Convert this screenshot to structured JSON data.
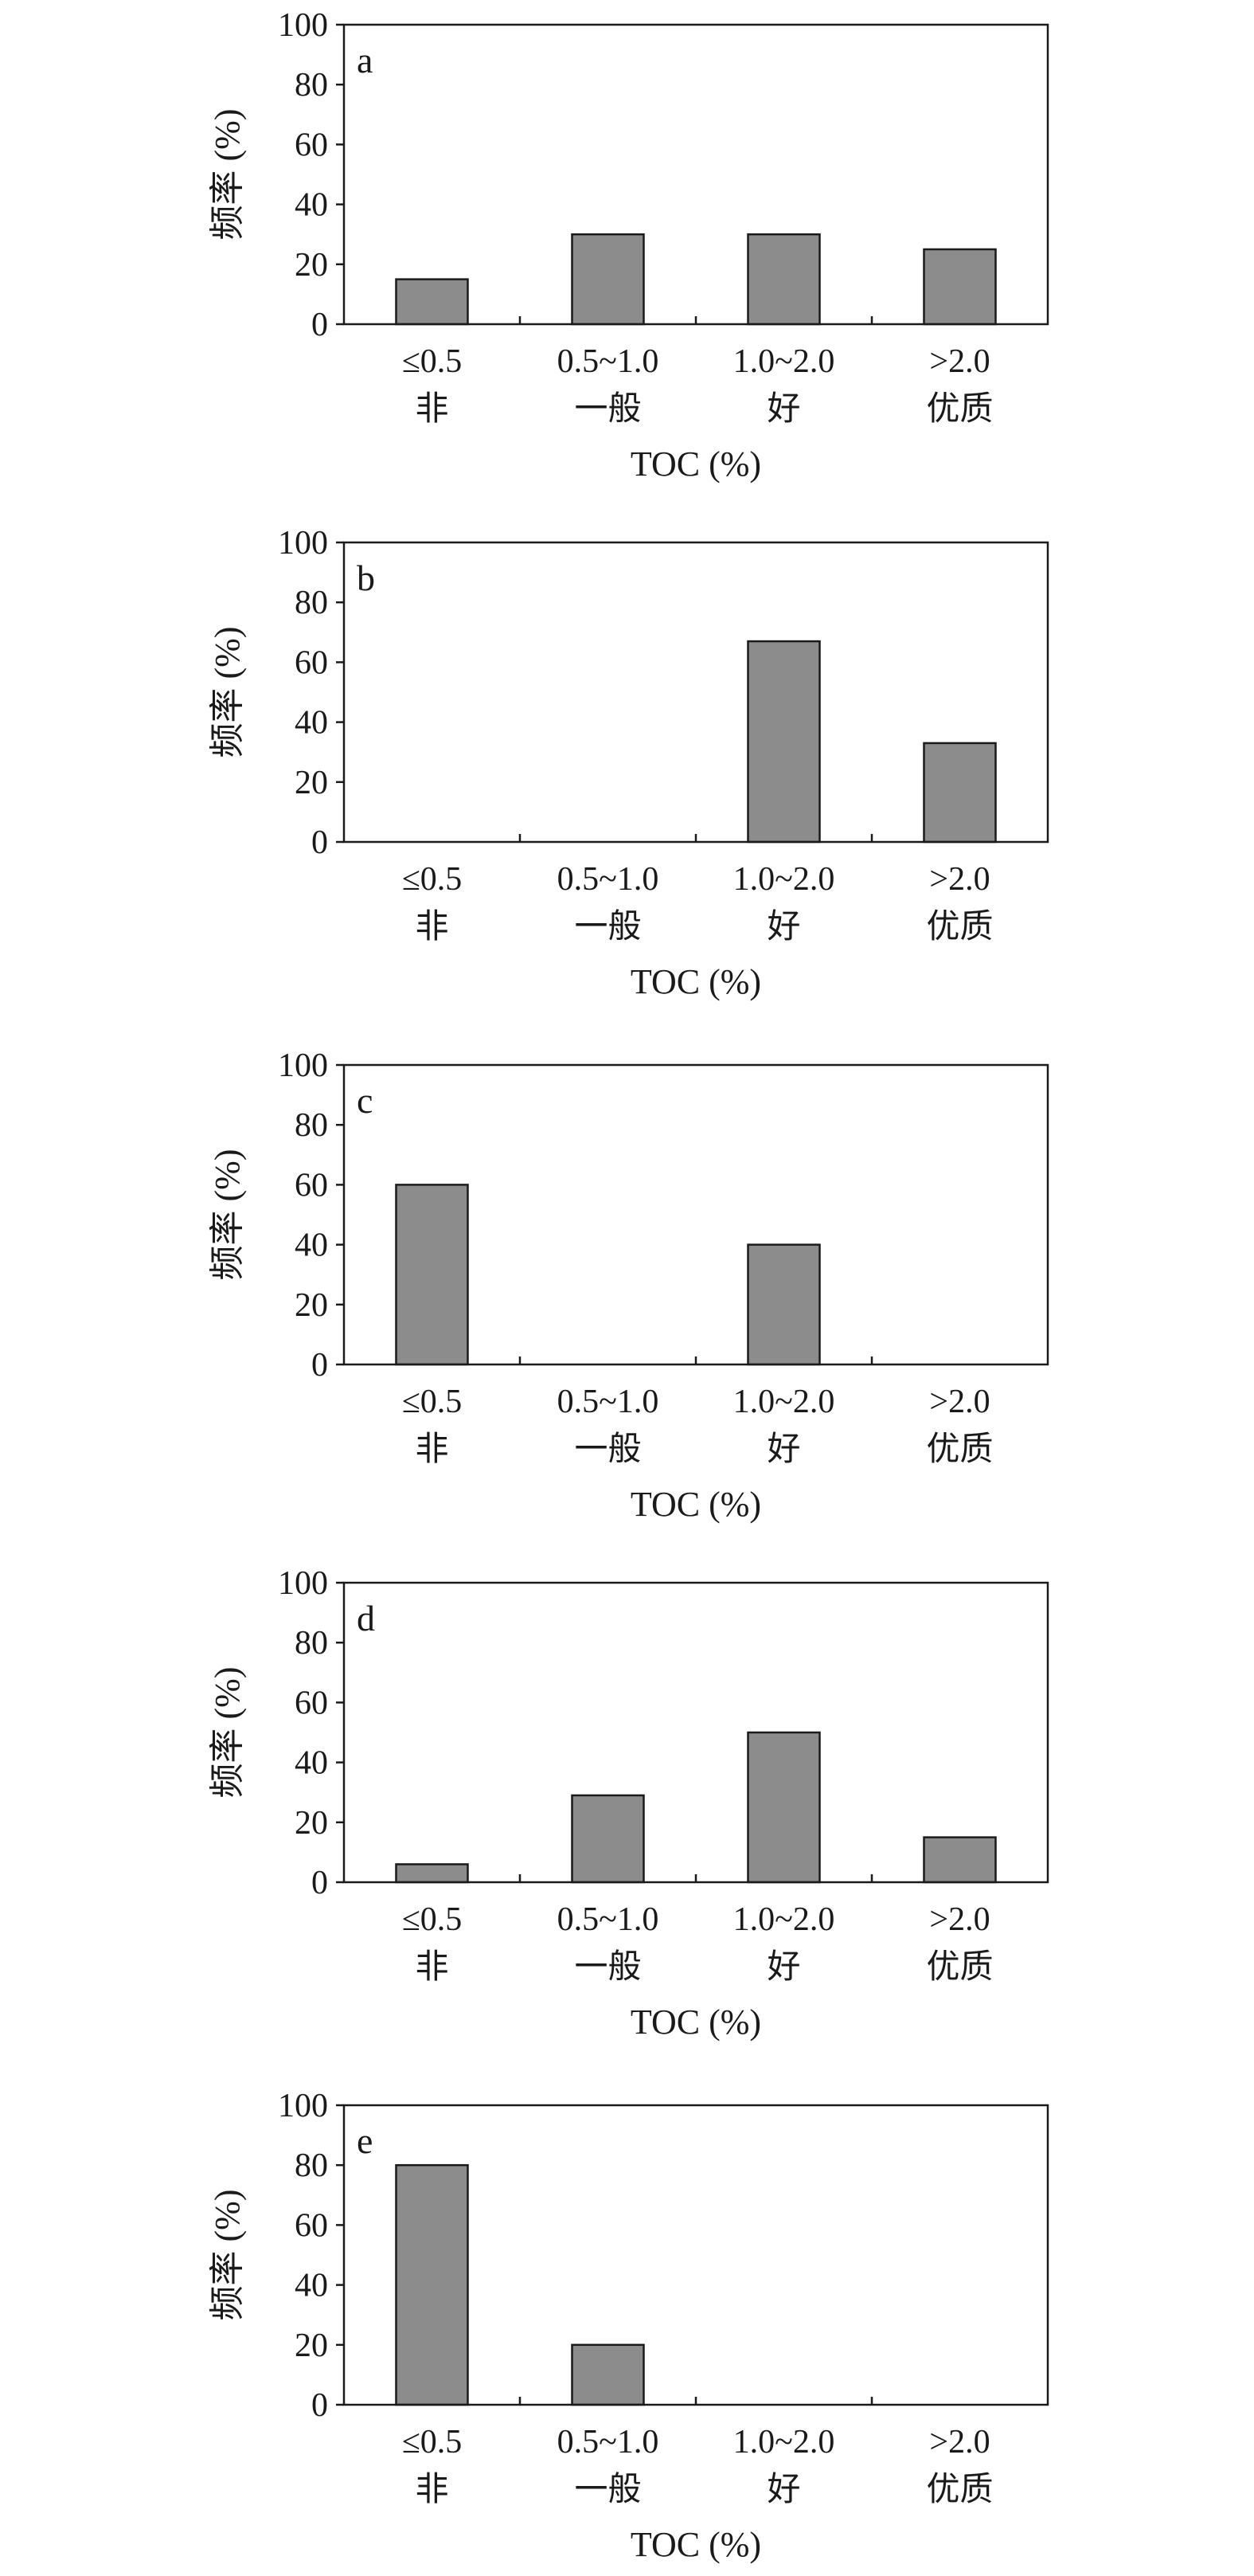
{
  "chart_data": [
    {
      "type": "bar",
      "panel_label": "a",
      "categories": [
        "≤0.5",
        "0.5~1.0",
        "1.0~2.0",
        ">2.0"
      ],
      "category_grades": [
        "非",
        "一般",
        "好",
        "优质"
      ],
      "values": [
        15,
        30,
        30,
        25
      ],
      "xlabel": "TOC (%)",
      "ylabel": "频率 (%)",
      "ylim": [
        0,
        100
      ],
      "yticks": [
        0,
        20,
        40,
        60,
        80,
        100
      ],
      "grid": false,
      "bar_color": "#8c8c8c"
    },
    {
      "type": "bar",
      "panel_label": "b",
      "categories": [
        "≤0.5",
        "0.5~1.0",
        "1.0~2.0",
        ">2.0"
      ],
      "category_grades": [
        "非",
        "一般",
        "好",
        "优质"
      ],
      "values": [
        0,
        0,
        67,
        33
      ],
      "xlabel": "TOC (%)",
      "ylabel": "频率 (%)",
      "ylim": [
        0,
        100
      ],
      "yticks": [
        0,
        20,
        40,
        60,
        80,
        100
      ],
      "grid": false,
      "bar_color": "#8c8c8c"
    },
    {
      "type": "bar",
      "panel_label": "c",
      "categories": [
        "≤0.5",
        "0.5~1.0",
        "1.0~2.0",
        ">2.0"
      ],
      "category_grades": [
        "非",
        "一般",
        "好",
        "优质"
      ],
      "values": [
        60,
        0,
        40,
        0
      ],
      "xlabel": "TOC (%)",
      "ylabel": "频率 (%)",
      "ylim": [
        0,
        100
      ],
      "yticks": [
        0,
        20,
        40,
        60,
        80,
        100
      ],
      "grid": false,
      "bar_color": "#8c8c8c"
    },
    {
      "type": "bar",
      "panel_label": "d",
      "categories": [
        "≤0.5",
        "0.5~1.0",
        "1.0~2.0",
        ">2.0"
      ],
      "category_grades": [
        "非",
        "一般",
        "好",
        "优质"
      ],
      "values": [
        6,
        29,
        50,
        15
      ],
      "xlabel": "TOC (%)",
      "ylabel": "频率 (%)",
      "ylim": [
        0,
        100
      ],
      "yticks": [
        0,
        20,
        40,
        60,
        80,
        100
      ],
      "grid": false,
      "bar_color": "#8c8c8c"
    },
    {
      "type": "bar",
      "panel_label": "e",
      "categories": [
        "≤0.5",
        "0.5~1.0",
        "1.0~2.0",
        ">2.0"
      ],
      "category_grades": [
        "非",
        "一般",
        "好",
        "优质"
      ],
      "values": [
        80,
        20,
        0,
        0
      ],
      "xlabel": "TOC (%)",
      "ylabel": "频率 (%)",
      "ylim": [
        0,
        100
      ],
      "yticks": [
        0,
        20,
        40,
        60,
        80,
        100
      ],
      "grid": false,
      "bar_color": "#8c8c8c"
    }
  ]
}
